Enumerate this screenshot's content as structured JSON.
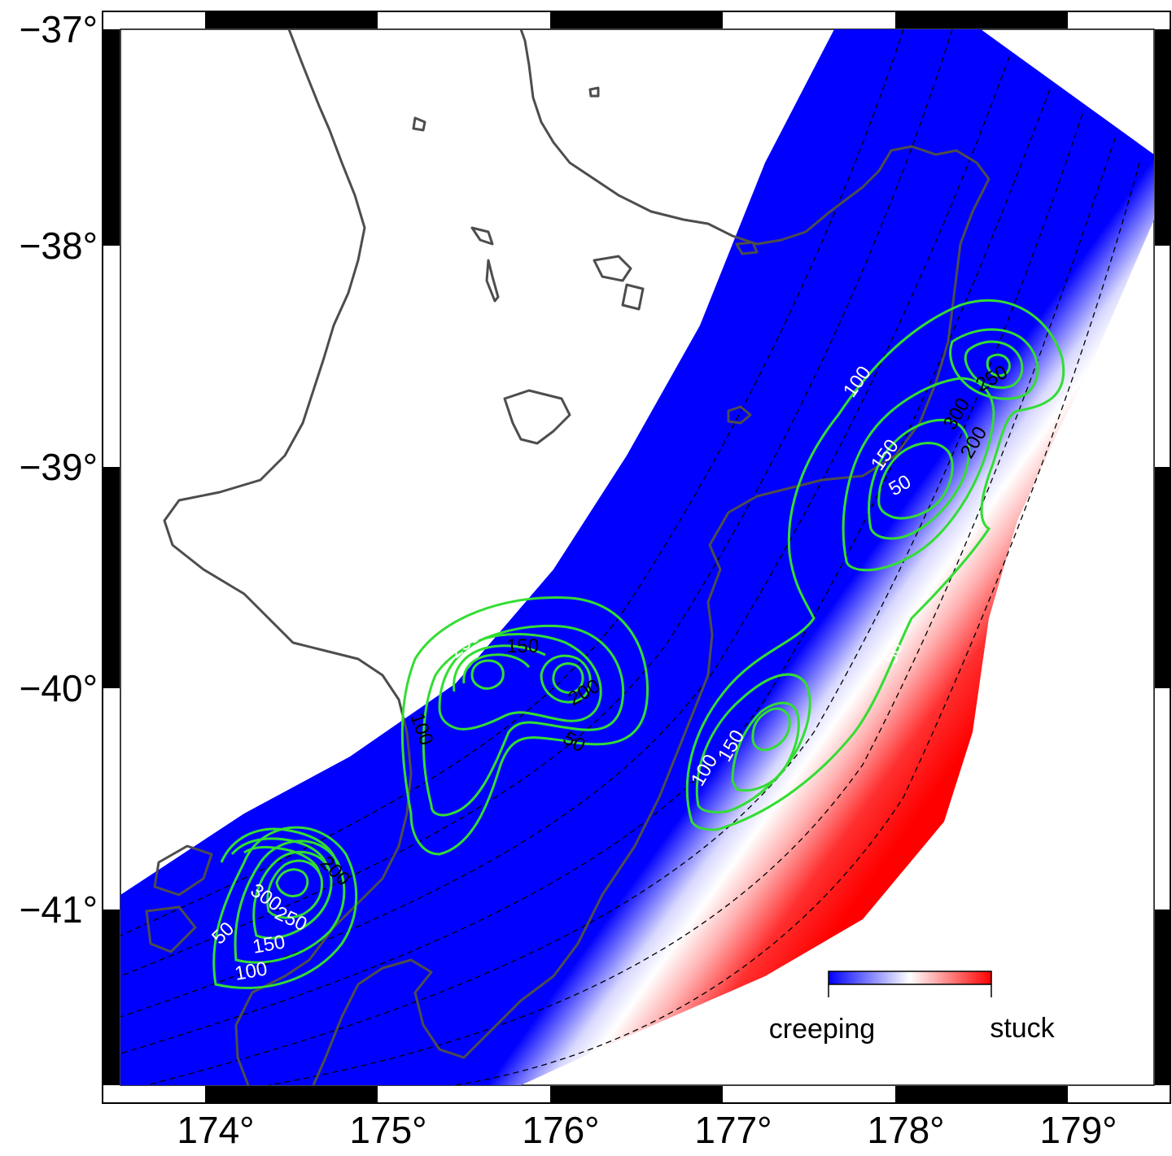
{
  "map": {
    "lon_ticks": [
      "174°",
      "175°",
      "176°",
      "177°",
      "178°",
      "179°"
    ],
    "lat_ticks": [
      "−37°",
      "−38°",
      "−39°",
      "−40°",
      "−41°"
    ],
    "colors": {
      "creeping": "#0000ff",
      "stuck": "#ff0000",
      "contour": "#33dd33",
      "coastline": "#4d4d4d",
      "depth_contours": "#000000"
    },
    "contour_labels": [
      {
        "text": "50",
        "color": "white"
      },
      {
        "text": "150",
        "color": "white"
      },
      {
        "text": "200",
        "color": "black"
      },
      {
        "text": "100",
        "color": "black"
      },
      {
        "text": "250",
        "color": "white"
      },
      {
        "text": "300",
        "color": "white"
      },
      {
        "text": "50",
        "color": "white"
      },
      {
        "text": "250",
        "color": "white"
      },
      {
        "text": "150",
        "color": "black"
      },
      {
        "text": "200",
        "color": "black"
      },
      {
        "text": "50",
        "color": "black"
      },
      {
        "text": "100",
        "color": "black"
      },
      {
        "text": "100",
        "color": "white"
      },
      {
        "text": "150",
        "color": "white"
      },
      {
        "text": "200",
        "color": "white"
      },
      {
        "text": "300",
        "color": "white"
      },
      {
        "text": "250",
        "color": "white"
      },
      {
        "text": "50",
        "color": "white"
      },
      {
        "text": "150",
        "color": "white"
      },
      {
        "text": "100",
        "color": "white"
      }
    ],
    "legend": {
      "left_label": "creeping",
      "right_label": "stuck"
    }
  }
}
